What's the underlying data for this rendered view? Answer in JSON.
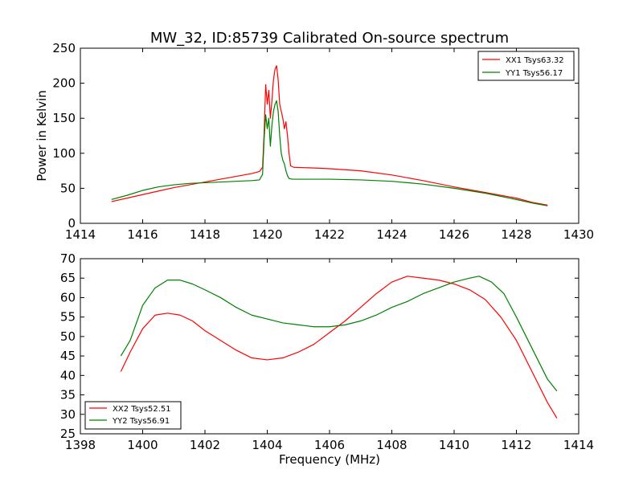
{
  "chart_data": [
    {
      "type": "line",
      "title": "MW_32, ID:85739 Calibrated On-source spectrum",
      "xlabel": "",
      "ylabel": "Power in Kelvin",
      "xlim": [
        1414,
        1430
      ],
      "ylim": [
        0,
        250
      ],
      "xticks": [
        1414,
        1416,
        1418,
        1420,
        1422,
        1424,
        1426,
        1428,
        1430
      ],
      "yticks": [
        0,
        50,
        100,
        150,
        200,
        250
      ],
      "grid": false,
      "legend_position": "upper right",
      "series": [
        {
          "name": "XX1 Tsys63.32",
          "color": "#ff0000",
          "points": [
            [
              1415.0,
              31
            ],
            [
              1415.5,
              36
            ],
            [
              1416.0,
              41
            ],
            [
              1416.5,
              46
            ],
            [
              1417.0,
              51
            ],
            [
              1417.5,
              55
            ],
            [
              1418.0,
              59
            ],
            [
              1418.5,
              63
            ],
            [
              1419.0,
              67
            ],
            [
              1419.5,
              71
            ],
            [
              1419.75,
              74
            ],
            [
              1419.85,
              80
            ],
            [
              1419.9,
              130
            ],
            [
              1419.95,
              198
            ],
            [
              1420.0,
              170
            ],
            [
              1420.05,
              190
            ],
            [
              1420.1,
              150
            ],
            [
              1420.15,
              175
            ],
            [
              1420.2,
              205
            ],
            [
              1420.25,
              220
            ],
            [
              1420.3,
              225
            ],
            [
              1420.35,
              205
            ],
            [
              1420.4,
              170
            ],
            [
              1420.45,
              160
            ],
            [
              1420.5,
              150
            ],
            [
              1420.55,
              135
            ],
            [
              1420.6,
              145
            ],
            [
              1420.65,
              125
            ],
            [
              1420.7,
              100
            ],
            [
              1420.75,
              82
            ],
            [
              1420.85,
              80
            ],
            [
              1421.5,
              79
            ],
            [
              1422.0,
              78
            ],
            [
              1423.0,
              75
            ],
            [
              1424.0,
              69
            ],
            [
              1425.0,
              61
            ],
            [
              1426.0,
              52
            ],
            [
              1427.0,
              44
            ],
            [
              1428.0,
              36
            ],
            [
              1428.5,
              30
            ],
            [
              1429.0,
              26
            ]
          ]
        },
        {
          "name": "YY1 Tsys56.17",
          "color": "#008000",
          "points": [
            [
              1415.0,
              34
            ],
            [
              1415.5,
              40
            ],
            [
              1416.0,
              47
            ],
            [
              1416.5,
              52
            ],
            [
              1417.0,
              55
            ],
            [
              1417.5,
              57
            ],
            [
              1418.0,
              58
            ],
            [
              1418.5,
              59
            ],
            [
              1419.0,
              60
            ],
            [
              1419.5,
              61
            ],
            [
              1419.75,
              62
            ],
            [
              1419.85,
              70
            ],
            [
              1419.9,
              120
            ],
            [
              1419.95,
              155
            ],
            [
              1420.0,
              135
            ],
            [
              1420.05,
              150
            ],
            [
              1420.1,
              110
            ],
            [
              1420.15,
              140
            ],
            [
              1420.2,
              160
            ],
            [
              1420.25,
              170
            ],
            [
              1420.3,
              175
            ],
            [
              1420.35,
              160
            ],
            [
              1420.4,
              125
            ],
            [
              1420.45,
              100
            ],
            [
              1420.5,
              90
            ],
            [
              1420.55,
              85
            ],
            [
              1420.6,
              75
            ],
            [
              1420.65,
              68
            ],
            [
              1420.7,
              64
            ],
            [
              1420.8,
              63
            ],
            [
              1421.0,
              63
            ],
            [
              1422.0,
              63
            ],
            [
              1423.0,
              62
            ],
            [
              1424.0,
              60
            ],
            [
              1425.0,
              56
            ],
            [
              1426.0,
              50
            ],
            [
              1427.0,
              43
            ],
            [
              1428.0,
              34
            ],
            [
              1428.5,
              29
            ],
            [
              1429.0,
              25
            ]
          ]
        }
      ]
    },
    {
      "type": "line",
      "title": "",
      "xlabel": "Frequency (MHz)",
      "ylabel": "",
      "xlim": [
        1398,
        1414
      ],
      "ylim": [
        25,
        70
      ],
      "xticks": [
        1398,
        1400,
        1402,
        1404,
        1406,
        1408,
        1410,
        1412,
        1414
      ],
      "yticks": [
        25,
        30,
        35,
        40,
        45,
        50,
        55,
        60,
        65,
        70
      ],
      "grid": false,
      "legend_position": "lower left",
      "series": [
        {
          "name": "XX2 Tsys52.51",
          "color": "#ff0000",
          "points": [
            [
              1399.3,
              41
            ],
            [
              1399.6,
              46
            ],
            [
              1400.0,
              52
            ],
            [
              1400.4,
              55.5
            ],
            [
              1400.8,
              56
            ],
            [
              1401.2,
              55.5
            ],
            [
              1401.6,
              54
            ],
            [
              1402.0,
              51.5
            ],
            [
              1402.5,
              49
            ],
            [
              1403.0,
              46.5
            ],
            [
              1403.5,
              44.5
            ],
            [
              1404.0,
              44
            ],
            [
              1404.5,
              44.5
            ],
            [
              1405.0,
              46
            ],
            [
              1405.5,
              48
            ],
            [
              1406.0,
              51
            ],
            [
              1406.5,
              54
            ],
            [
              1407.0,
              57.5
            ],
            [
              1407.5,
              61
            ],
            [
              1408.0,
              64
            ],
            [
              1408.5,
              65.5
            ],
            [
              1409.0,
              65
            ],
            [
              1409.5,
              64.5
            ],
            [
              1410.0,
              63.5
            ],
            [
              1410.5,
              62
            ],
            [
              1411.0,
              59.5
            ],
            [
              1411.5,
              55
            ],
            [
              1412.0,
              49
            ],
            [
              1412.5,
              41
            ],
            [
              1413.0,
              33
            ],
            [
              1413.3,
              29
            ]
          ]
        },
        {
          "name": "YY2 Tsys56.91",
          "color": "#008000",
          "points": [
            [
              1399.3,
              45
            ],
            [
              1399.6,
              49
            ],
            [
              1400.0,
              58
            ],
            [
              1400.4,
              62.5
            ],
            [
              1400.8,
              64.5
            ],
            [
              1401.2,
              64.5
            ],
            [
              1401.6,
              63.5
            ],
            [
              1402.0,
              62
            ],
            [
              1402.5,
              60
            ],
            [
              1403.0,
              57.5
            ],
            [
              1403.5,
              55.5
            ],
            [
              1404.0,
              54.5
            ],
            [
              1404.5,
              53.5
            ],
            [
              1405.0,
              53
            ],
            [
              1405.5,
              52.5
            ],
            [
              1406.0,
              52.5
            ],
            [
              1406.5,
              53
            ],
            [
              1407.0,
              54
            ],
            [
              1407.5,
              55.5
            ],
            [
              1408.0,
              57.5
            ],
            [
              1408.5,
              59
            ],
            [
              1409.0,
              61
            ],
            [
              1409.5,
              62.5
            ],
            [
              1410.0,
              64
            ],
            [
              1410.5,
              65
            ],
            [
              1410.8,
              65.5
            ],
            [
              1411.2,
              64
            ],
            [
              1411.6,
              61
            ],
            [
              1412.0,
              55
            ],
            [
              1412.5,
              47
            ],
            [
              1413.0,
              39
            ],
            [
              1413.3,
              36
            ]
          ]
        }
      ]
    }
  ]
}
